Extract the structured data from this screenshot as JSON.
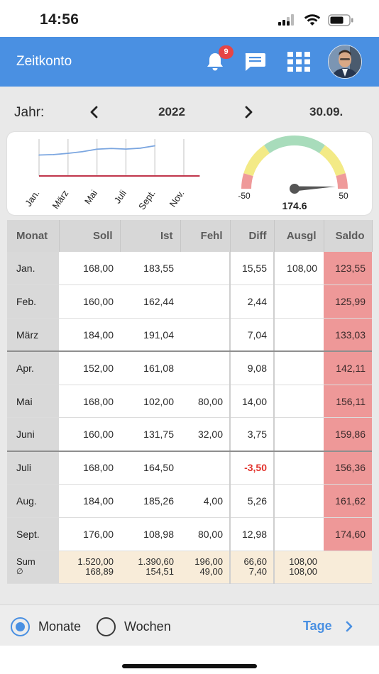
{
  "status": {
    "time": "14:56"
  },
  "header": {
    "title": "Zeitkonto",
    "notification_count": "9"
  },
  "year_bar": {
    "label": "Jahr:",
    "year": "2022",
    "date": "30.09."
  },
  "line_chart": {
    "x_labels": [
      "Jan.",
      "März",
      "Mai",
      "Juli",
      "Sept.",
      "Nov."
    ],
    "line_color": "#7ba6e0",
    "baseline_color": "#c0364b"
  },
  "gauge": {
    "min_label": "-50",
    "max_label": "50",
    "value_label": "174.6",
    "value": 174.6,
    "colors": {
      "low": "#ef9a9a",
      "mid": "#f3ea86",
      "good": "#a8dcbb"
    }
  },
  "chart_data": {
    "type": "line",
    "x": [
      "Jan.",
      "Feb.",
      "März",
      "Apr.",
      "Mai",
      "Juni",
      "Juli",
      "Aug.",
      "Sept."
    ],
    "series": [
      {
        "values": [
          123.55,
          125.99,
          133.03,
          142.11,
          156.11,
          159.86,
          156.36,
          161.62,
          174.6
        ]
      }
    ]
  },
  "table": {
    "headers": [
      "Monat",
      "Soll",
      "Ist",
      "Fehl",
      "Diff",
      "Ausgl",
      "Saldo"
    ],
    "rows": [
      [
        "Jan.",
        "168,00",
        "183,55",
        "",
        "15,55",
        "108,00",
        "123,55"
      ],
      [
        "Feb.",
        "160,00",
        "162,44",
        "",
        "2,44",
        "",
        "125,99"
      ],
      [
        "März",
        "184,00",
        "191,04",
        "",
        "7,04",
        "",
        "133,03"
      ],
      [
        "Apr.",
        "152,00",
        "161,08",
        "",
        "9,08",
        "",
        "142,11"
      ],
      [
        "Mai",
        "168,00",
        "102,00",
        "80,00",
        "14,00",
        "",
        "156,11"
      ],
      [
        "Juni",
        "160,00",
        "131,75",
        "32,00",
        "3,75",
        "",
        "159,86"
      ],
      [
        "Juli",
        "168,00",
        "164,50",
        "",
        "-3,50",
        "",
        "156,36"
      ],
      [
        "Aug.",
        "184,00",
        "185,26",
        "4,00",
        "5,26",
        "",
        "161,62"
      ],
      [
        "Sept.",
        "176,00",
        "108,98",
        "80,00",
        "12,98",
        "",
        "174,60"
      ]
    ],
    "sum": {
      "label": "Sum",
      "avg_label": "∅",
      "soll": "1.520,00",
      "soll_avg": "168,89",
      "ist": "1.390,60",
      "ist_avg": "154,51",
      "fehl": "196,00",
      "fehl_avg": "49,00",
      "diff": "66,60",
      "diff_avg": "7,40",
      "ausgl": "108,00",
      "ausgl_avg": "108,00"
    },
    "negative_color": "#e2342e",
    "saldo_color": "#ee9898"
  },
  "bottom": {
    "option_months": "Monate",
    "option_weeks": "Wochen",
    "selected": "Monate",
    "days_link": "Tage"
  }
}
